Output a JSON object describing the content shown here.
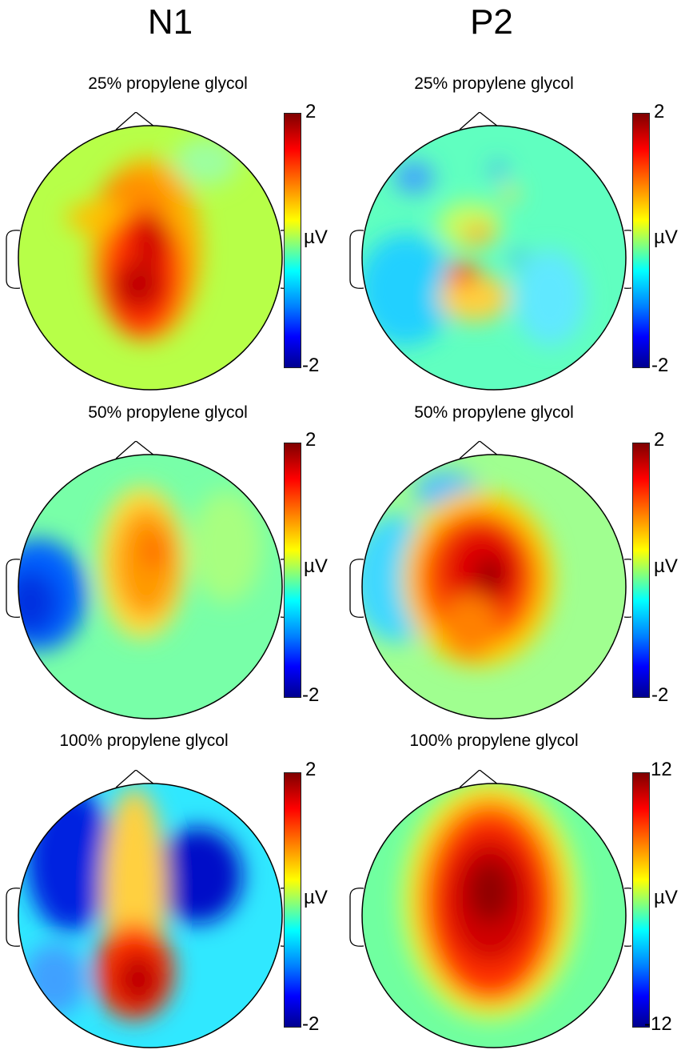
{
  "columns": [
    "N1",
    "P2"
  ],
  "panels": [
    {
      "col": 0,
      "row": 0,
      "title": "25% propylene glycol",
      "cmax": "2",
      "cmin": "-2",
      "unit": "µV",
      "pattern": "n1-25"
    },
    {
      "col": 1,
      "row": 0,
      "title": "25% propylene glycol",
      "cmax": "2",
      "cmin": "-2",
      "unit": "µV",
      "pattern": "p2-25"
    },
    {
      "col": 0,
      "row": 1,
      "title": "50% propylene glycol",
      "cmax": "2",
      "cmin": "-2",
      "unit": "µV",
      "pattern": "n1-50"
    },
    {
      "col": 1,
      "row": 1,
      "title": "50% propylene glycol",
      "cmax": "2",
      "cmin": "-2",
      "unit": "µV",
      "pattern": "p2-50"
    },
    {
      "col": 0,
      "row": 2,
      "title": "100% propylene glycol",
      "cmax": "2",
      "cmin": "-2",
      "unit": "µV",
      "pattern": "n1-100"
    },
    {
      "col": 1,
      "row": 2,
      "title": "100% propylene glycol",
      "cmax": "12",
      "cmin": "-12",
      "unit": "µV",
      "pattern": "p2-100"
    }
  ],
  "colors": {
    "jet": [
      "#00008f",
      "#0000ff",
      "#0080ff",
      "#00ffff",
      "#80ff80",
      "#ffff00",
      "#ff8000",
      "#ff0000",
      "#800000"
    ]
  }
}
